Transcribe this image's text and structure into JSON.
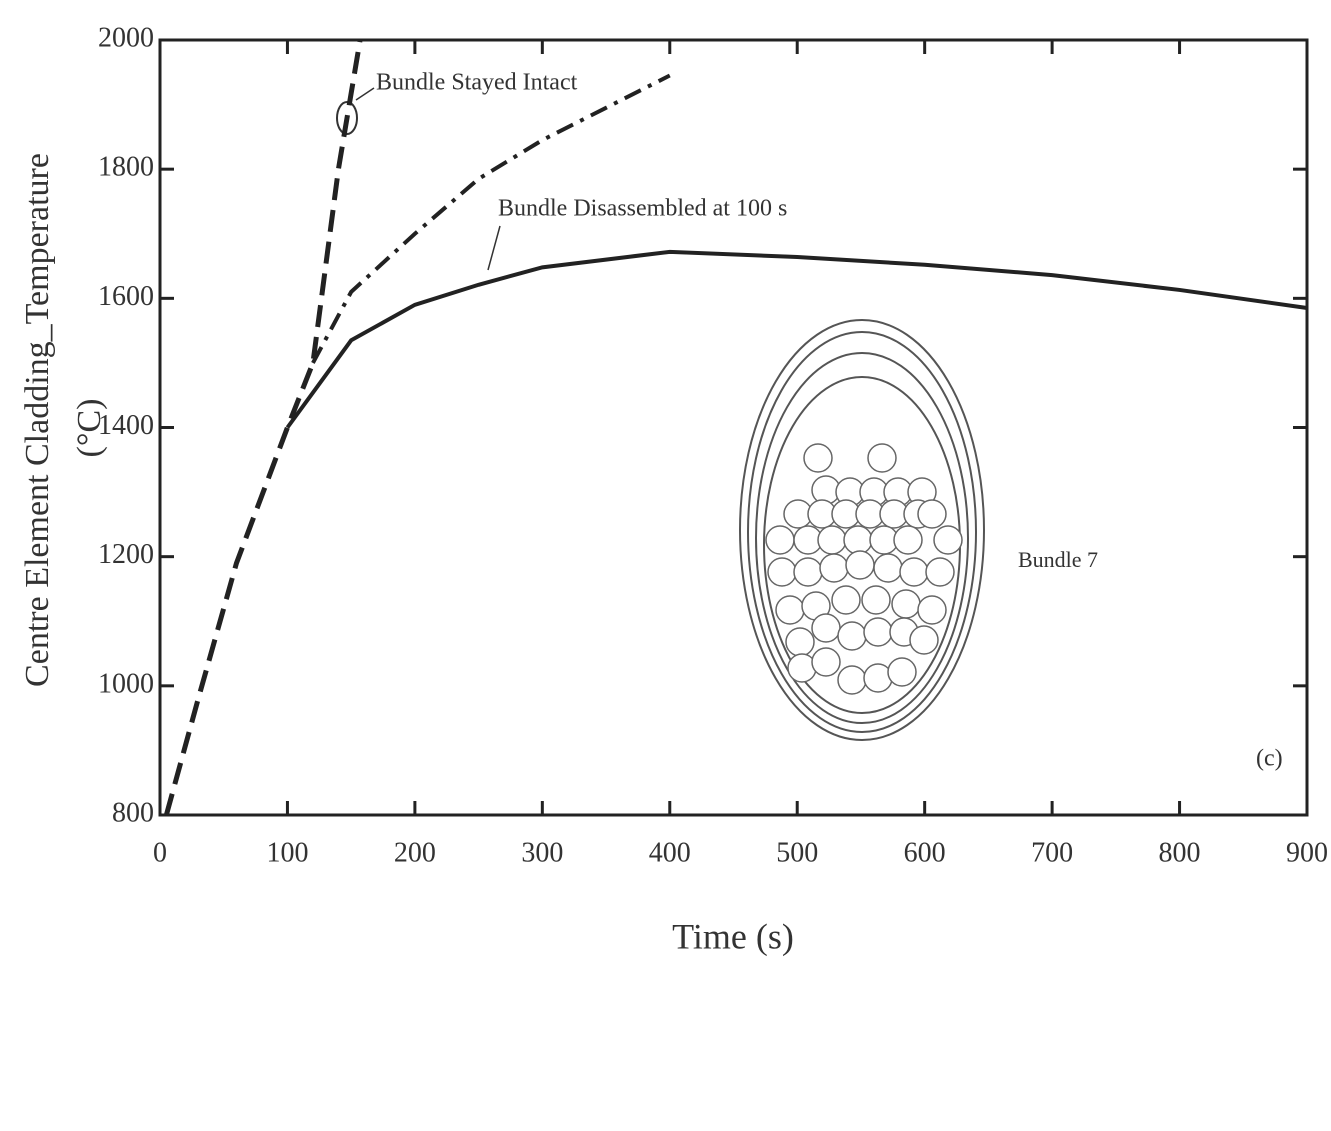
{
  "chart_data": {
    "type": "line",
    "y_label": [
      "Centre Element Cladding_Temperature",
      "(°C)"
    ],
    "x_label": "Time (s)",
    "xlim": [
      0,
      900
    ],
    "xticks": [
      0,
      100,
      200,
      300,
      400,
      500,
      600,
      700,
      800,
      900
    ],
    "ylim": [
      800,
      2000
    ],
    "yticks": [
      800,
      1000,
      1200,
      1400,
      1600,
      1800,
      2000
    ],
    "series": [
      {
        "color": "#222222",
        "style": "dashed",
        "x": [
          5,
          30,
          60,
          100,
          120,
          140,
          157
        ],
        "values": [
          800,
          980,
          1190,
          1400,
          1500,
          1800,
          2000
        ]
      },
      {
        "color": "#222222",
        "style": "dashdot",
        "x": [
          120,
          150,
          200,
          250,
          300,
          350,
          400
        ],
        "values": [
          1500,
          1610,
          1700,
          1785,
          1845,
          1895,
          1945
        ]
      },
      {
        "color": "#222222",
        "style": "solid",
        "x": [
          100,
          150,
          200,
          250,
          300,
          400,
          500,
          600,
          700,
          800,
          900
        ],
        "values": [
          1400,
          1535,
          1590,
          1621,
          1648,
          1672,
          1664,
          1652,
          1636,
          1613,
          1585
        ]
      }
    ],
    "annotations": [
      "Bundle Stayed Intact",
      "Bundle Disassembled at 100 s",
      "Bundle 7",
      "(c)"
    ]
  }
}
